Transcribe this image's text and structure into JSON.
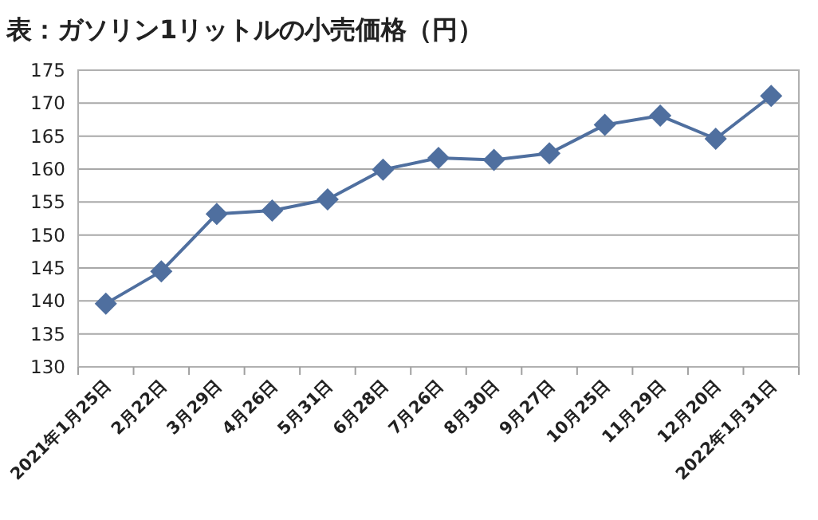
{
  "chart_data": {
    "type": "line",
    "title": "表：ガソリン1リットルの小売価格（円）",
    "categories": [
      "2021年1月25日",
      "2月22日",
      "3月29日",
      "4月26日",
      "5月31日",
      "6月28日",
      "7月26日",
      "8月30日",
      "9月27日",
      "10月25日",
      "11月29日",
      "12月20日",
      "2022年1月31日"
    ],
    "series": [
      {
        "color": "#4f6f9f",
        "values": [
          139.6,
          144.5,
          153.2,
          153.7,
          155.4,
          159.9,
          161.7,
          161.4,
          162.4,
          166.7,
          168.1,
          164.6,
          171.1
        ]
      }
    ],
    "ylim": [
      130,
      175
    ],
    "yticks": [
      130,
      135,
      140,
      145,
      150,
      155,
      160,
      165,
      170,
      175
    ],
    "grid": "y",
    "marker": "diamond",
    "line_style": "solid"
  }
}
